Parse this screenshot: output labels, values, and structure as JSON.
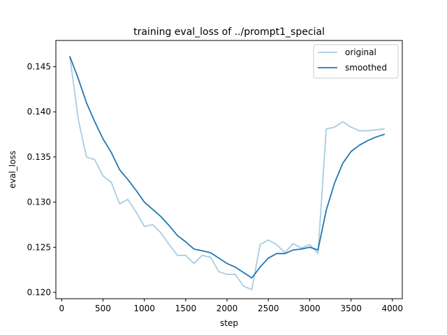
{
  "chart_data": {
    "type": "line",
    "title": "training eval_loss of ../prompt1_special",
    "xlabel": "step",
    "ylabel": "eval_loss",
    "xlim": [
      -70,
      4120
    ],
    "ylim": [
      0.1193,
      0.1479
    ],
    "x_ticks": [
      0,
      500,
      1000,
      1500,
      2000,
      2500,
      3000,
      3500,
      4000
    ],
    "y_ticks": [
      0.12,
      0.125,
      0.13,
      0.135,
      0.14,
      0.145
    ],
    "y_tick_labels": [
      "0.120",
      "0.125",
      "0.130",
      "0.135",
      "0.140",
      "0.145"
    ],
    "legend_position": "top-right",
    "x": [
      100,
      200,
      300,
      400,
      500,
      600,
      700,
      800,
      900,
      1000,
      1100,
      1200,
      1300,
      1400,
      1500,
      1600,
      1700,
      1800,
      1900,
      2000,
      2100,
      2200,
      2300,
      2400,
      2500,
      2600,
      2700,
      2800,
      2900,
      3000,
      3100,
      3200,
      3300,
      3400,
      3500,
      3600,
      3700,
      3800,
      3900
    ],
    "series": [
      {
        "name": "original",
        "color": "#a6cee3",
        "values": [
          0.1461,
          0.1392,
          0.135,
          0.1347,
          0.1329,
          0.1322,
          0.1298,
          0.1303,
          0.1289,
          0.1273,
          0.1275,
          0.1266,
          0.1253,
          0.1241,
          0.1241,
          0.1232,
          0.1241,
          0.1239,
          0.1223,
          0.122,
          0.122,
          0.1207,
          0.1203,
          0.1253,
          0.1258,
          0.1253,
          0.1244,
          0.1254,
          0.1249,
          0.1253,
          0.1243,
          0.1381,
          0.1383,
          0.1389,
          0.1383,
          0.1379,
          0.1379,
          0.138,
          0.1381
        ]
      },
      {
        "name": "smoothed",
        "color": "#1f77b4",
        "values": [
          0.1461,
          0.1437,
          0.141,
          0.1389,
          0.137,
          0.1355,
          0.1336,
          0.1325,
          0.1313,
          0.13,
          0.1292,
          0.1284,
          0.1274,
          0.1263,
          0.1256,
          0.1248,
          0.1246,
          0.1244,
          0.1238,
          0.1232,
          0.1228,
          0.1222,
          0.1216,
          0.1228,
          0.1238,
          0.1243,
          0.1243,
          0.1247,
          0.1248,
          0.125,
          0.1247,
          0.1291,
          0.1321,
          0.1343,
          0.1356,
          0.1363,
          0.1368,
          0.1372,
          0.1375
        ]
      }
    ]
  }
}
